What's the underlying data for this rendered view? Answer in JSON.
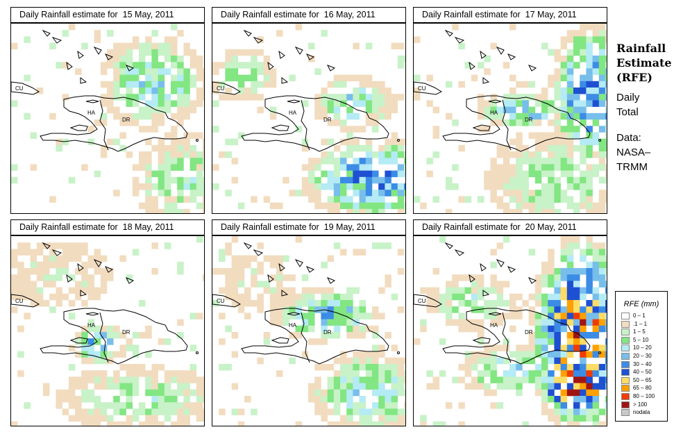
{
  "panels": [
    {
      "title": "Daily Rainfall estimate for  15 May, 2011",
      "intensity": 1
    },
    {
      "title": "Daily Rainfall estimate for  16 May, 2011",
      "intensity": 2
    },
    {
      "title": "Daily Rainfall estimate for  17 May, 2011",
      "intensity": 3
    },
    {
      "title": "Daily Rainfall estimate for  18 May, 2011",
      "intensity": 1
    },
    {
      "title": "Daily Rainfall estimate for  19 May, 2011",
      "intensity": 2
    },
    {
      "title": "Daily Rainfall estimate for  20 May, 2011",
      "intensity": 5
    }
  ],
  "map_labels": {
    "cuba": "CU",
    "haiti": "HA",
    "dominican_republic": "DR"
  },
  "sidebar": {
    "title_line1": "Rainfall",
    "title_line2": "Estimate",
    "title_line3": "(RFE)",
    "subtitle_line1": "Daily",
    "subtitle_line2": "Total",
    "source_line1": "Data:",
    "source_line2": "NASA–",
    "source_line3": "TRMM"
  },
  "legend": {
    "title": "RFE (mm)",
    "items": [
      {
        "label": "0 – 1",
        "color": "#ffffff"
      },
      {
        "label": ".1 – 1",
        "color": "#f2dcbf"
      },
      {
        "label": "1 – 5",
        "color": "#c8f2c8"
      },
      {
        "label": "5 – 10",
        "color": "#82e682"
      },
      {
        "label": "10 – 20",
        "color": "#b4ebf5"
      },
      {
        "label": "20 – 30",
        "color": "#78beeb"
      },
      {
        "label": "30 – 40",
        "color": "#3c8ce6"
      },
      {
        "label": "40 – 50",
        "color": "#1e50d2"
      },
      {
        "label": "50 – 65",
        "color": "#ffdc64"
      },
      {
        "label": "65 – 80",
        "color": "#ffa000"
      },
      {
        "label": "80 – 100",
        "color": "#f03c00"
      },
      {
        "label": "> 100",
        "color": "#a01414"
      },
      {
        "label": "nodata",
        "color": "#c8c8c8"
      }
    ]
  }
}
